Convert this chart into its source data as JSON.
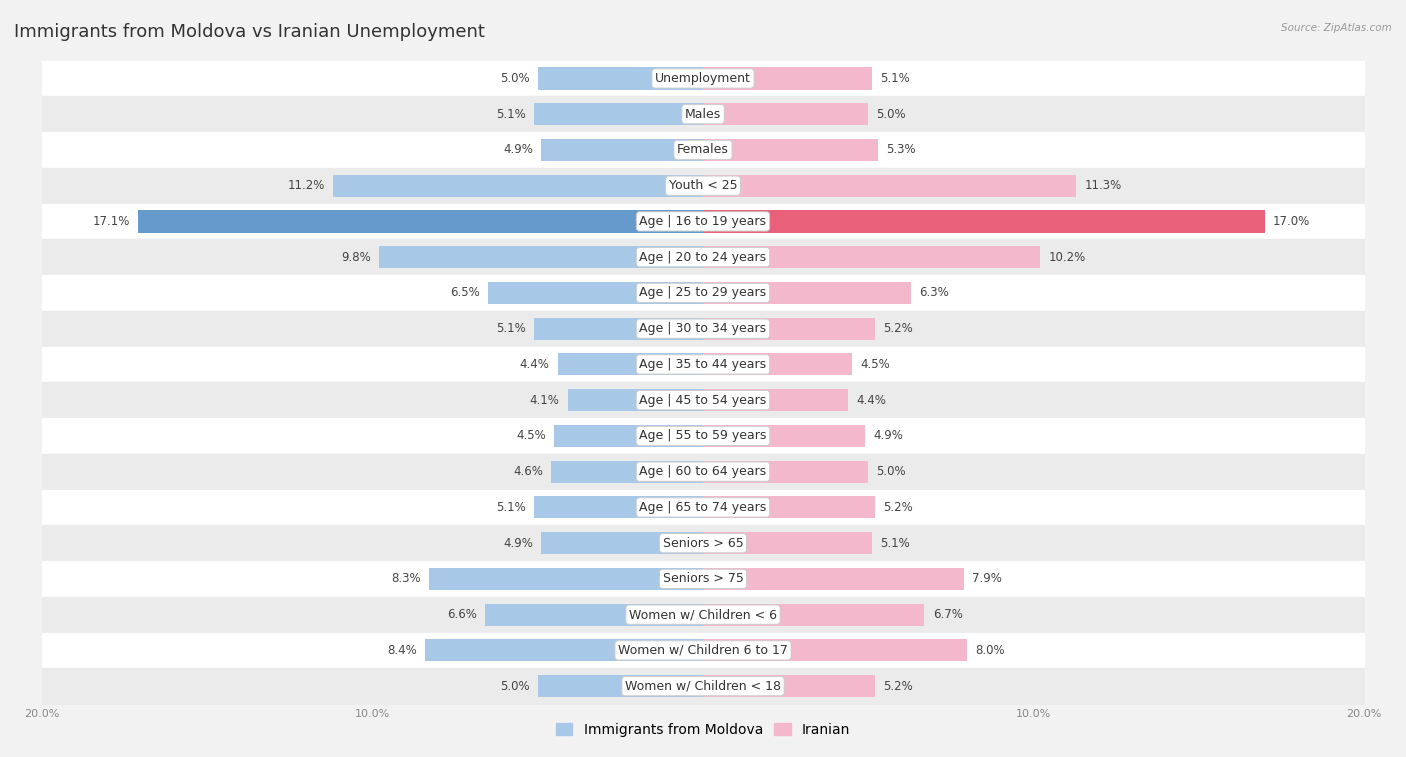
{
  "title": "Immigrants from Moldova vs Iranian Unemployment",
  "source": "Source: ZipAtlas.com",
  "categories": [
    "Unemployment",
    "Males",
    "Females",
    "Youth < 25",
    "Age | 16 to 19 years",
    "Age | 20 to 24 years",
    "Age | 25 to 29 years",
    "Age | 30 to 34 years",
    "Age | 35 to 44 years",
    "Age | 45 to 54 years",
    "Age | 55 to 59 years",
    "Age | 60 to 64 years",
    "Age | 65 to 74 years",
    "Seniors > 65",
    "Seniors > 75",
    "Women w/ Children < 6",
    "Women w/ Children 6 to 17",
    "Women w/ Children < 18"
  ],
  "left_values": [
    5.0,
    5.1,
    4.9,
    11.2,
    17.1,
    9.8,
    6.5,
    5.1,
    4.4,
    4.1,
    4.5,
    4.6,
    5.1,
    4.9,
    8.3,
    6.6,
    8.4,
    5.0
  ],
  "right_values": [
    5.1,
    5.0,
    5.3,
    11.3,
    17.0,
    10.2,
    6.3,
    5.2,
    4.5,
    4.4,
    4.9,
    5.0,
    5.2,
    5.1,
    7.9,
    6.7,
    8.0,
    5.2
  ],
  "left_color": "#a8c8e8",
  "right_color": "#f4b8cc",
  "highlight_left_color": "#6699cc",
  "highlight_right_color": "#e8607a",
  "highlight_idx": 4,
  "bar_height": 0.62,
  "max_value": 20.0,
  "bg_color": "#f2f2f2",
  "row_color_a": "#ffffff",
  "row_color_b": "#ebebeb",
  "title_fontsize": 13,
  "label_fontsize": 9,
  "value_fontsize": 8.5,
  "legend_fontsize": 10
}
